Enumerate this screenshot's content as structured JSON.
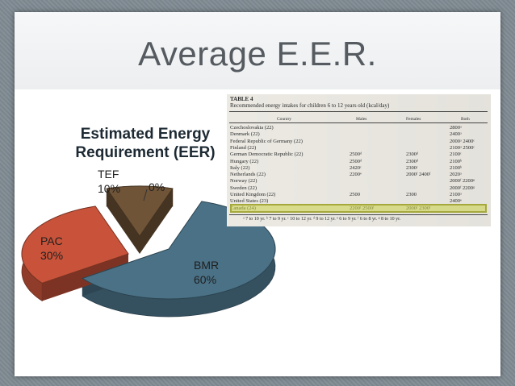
{
  "slide": {
    "title": "Average E.E.R."
  },
  "chart": {
    "title_line1": "Estimated Energy",
    "title_line2": "Requirement  (EER)",
    "labels": {
      "tef": "TEF\n10%",
      "zero": "0%",
      "pac": "PAC\n30%",
      "bmr": "BMR\n60%"
    },
    "colors": {
      "bmr": "#4a7186",
      "pac": "#c8533a",
      "tef": "#6f5437"
    }
  },
  "chart_data": {
    "type": "pie",
    "title": "Estimated Energy Requirement  (EER)",
    "slices": [
      {
        "label": "BMR",
        "value": 60
      },
      {
        "label": "PAC",
        "value": 30
      },
      {
        "label": "TEF",
        "value": 10
      },
      {
        "label": "",
        "value": 0
      }
    ]
  },
  "table": {
    "caption1": "TABLE 4",
    "caption2": "Recommended energy intakes for children 6 to 12 years old (kcal/day)",
    "columns": [
      "Country",
      "Males",
      "Females",
      "Both"
    ],
    "rows": [
      {
        "country": "Czechoslovakia (22)",
        "males": "",
        "females": "",
        "both": "2800ᵃ"
      },
      {
        "country": "Denmark (22)",
        "males": "",
        "females": "",
        "both": "2400ᵃ"
      },
      {
        "country": "Federal Republic of Germany (22)",
        "males": "",
        "females": "",
        "both": "2000ᵃ  2400ᶜ"
      },
      {
        "country": "Finland (22)",
        "males": "",
        "females": "",
        "both": "2100ᵃ  2500ᶜ"
      },
      {
        "country": "German Democratic Republic (22)",
        "males": "2500ᵈ",
        "females": "2300ᵈ",
        "both": "2100ᶜ"
      },
      {
        "country": "Hungary (22)",
        "males": "2500ᵈ",
        "females": "2300ᵈ",
        "both": "2100ᵇ"
      },
      {
        "country": "Italy (22)",
        "males": "2420ᶜ",
        "females": "2300ᶜ",
        "both": "2100ᵇ"
      },
      {
        "country": "Netherlands (22)",
        "males": "2200ᵉ",
        "females": "2000ᶠ  2400ᶠ",
        "both": "2020ᵃ"
      },
      {
        "country": "Norway (22)",
        "males": "",
        "females": "",
        "both": "2000ᶠ  2200ᵍ"
      },
      {
        "country": "Sweden (22)",
        "males": "",
        "females": "",
        "both": "2000ᶠ  2200ᵍ"
      },
      {
        "country": "United Kingdom (22)",
        "males": "2500",
        "females": "2300",
        "both": "2100ᵃ"
      },
      {
        "country": "United States (23)",
        "males": "",
        "females": "",
        "both": "2400ᵉ"
      },
      {
        "country": "Canada (24)",
        "males": "2200ᶠ  2500ᶠ",
        "females": "2000ᶠ  2300ᶠ",
        "both": ""
      }
    ],
    "footnote": "ᵃ 7 to 10 yr.   ᵇ 7 to 9 yr.   ᶜ 10 to 12 yr.   ᵈ 9 to 12 yr.   ᵉ 6 to 9 yr.   ᶠ 6 to 8 yr.   ᵍ 8 to 10 yr."
  }
}
